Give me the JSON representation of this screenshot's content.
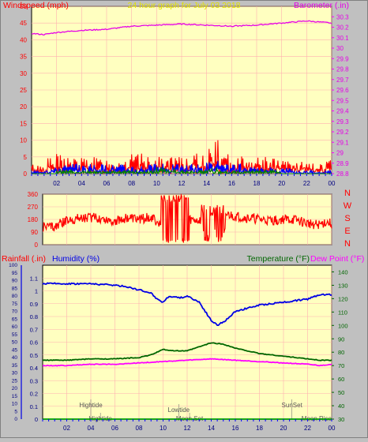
{
  "chart_data": [
    {
      "type": "line",
      "title": "24 hour graph for  July 03 2018",
      "left_label": "Windspeed (mph)",
      "right_label": "Barometer (.in)",
      "ylim_left": [
        0,
        50
      ],
      "ylim_right": [
        28.8,
        30.4
      ],
      "left_ticks": [
        0,
        5,
        10,
        15,
        20,
        25,
        30,
        35,
        40,
        45,
        50
      ],
      "right_ticks": [
        "28.8",
        "28.9",
        "29",
        "29.1",
        "29.2",
        "29.3",
        "29.4",
        "29.5",
        "29.6",
        "29.7",
        "29.8",
        "29.9",
        "30",
        "30.1",
        "30.2",
        "30.3"
      ],
      "x_ticks": [
        "02",
        "04",
        "06",
        "08",
        "10",
        "12",
        "14",
        "16",
        "18",
        "20",
        "22",
        "00"
      ],
      "grid": true,
      "series": [
        {
          "id": "barometer",
          "axis": "right",
          "color": "#e600e6",
          "x": [
            0,
            1,
            2,
            4,
            6,
            8,
            10,
            12,
            14,
            16,
            18,
            20,
            22,
            23,
            24
          ],
          "values": [
            30.14,
            30.13,
            30.15,
            30.17,
            30.18,
            30.21,
            30.22,
            30.23,
            30.22,
            30.21,
            30.22,
            30.24,
            30.26,
            30.25,
            30.24
          ]
        },
        {
          "id": "wind-gust",
          "axis": "left",
          "color": "#ff0000",
          "hourly_max": [
            3,
            5,
            6,
            5,
            5,
            5,
            5,
            5,
            6,
            5,
            5,
            5,
            6,
            6,
            10,
            6,
            6,
            5,
            5,
            5,
            4,
            4,
            3,
            4
          ]
        },
        {
          "id": "wind-avg",
          "axis": "left",
          "color": "#0000ff",
          "hourly_max": [
            1,
            2,
            3,
            3,
            3,
            3,
            3,
            3,
            3,
            3,
            3,
            3,
            3,
            3,
            4,
            3,
            3,
            2,
            2,
            2,
            2,
            1,
            1,
            1
          ]
        },
        {
          "id": "wind-low",
          "axis": "left",
          "color": "#008000",
          "hourly_max": [
            0,
            0,
            1,
            1,
            1,
            1,
            1,
            1,
            1,
            1,
            2,
            2,
            1,
            1,
            2,
            1,
            1,
            1,
            1,
            1,
            0,
            0,
            0,
            0
          ]
        }
      ]
    },
    {
      "type": "line",
      "left_ticks": [
        "360",
        "270",
        "180",
        "90",
        "0"
      ],
      "ylim": [
        0,
        360
      ],
      "compass_labels": [
        "N",
        "W",
        "S",
        "E",
        "N"
      ],
      "series": [
        {
          "id": "wind-direction",
          "color": "#ff0000",
          "x": [
            0,
            1,
            2,
            2.5,
            3,
            4,
            5,
            6,
            7,
            8,
            9,
            9.5,
            10,
            10.5,
            11,
            11.5,
            12,
            13,
            14,
            14.5,
            15,
            16,
            17,
            18,
            19,
            20,
            21,
            22,
            23,
            23.5,
            24
          ],
          "values": [
            130,
            130,
            170,
            180,
            190,
            195,
            185,
            170,
            190,
            180,
            200,
            160,
            120,
            210,
            160,
            170,
            180,
            170,
            200,
            130,
            220,
            200,
            190,
            180,
            170,
            180,
            175,
            150,
            140,
            160,
            150
          ]
        }
      ]
    },
    {
      "type": "line",
      "left_label_1": "Rainfall (.in)",
      "left_label_2": "Humidity (%)",
      "right_label_1": "Temperature (°F)",
      "right_label_2": "Dew Point (°F)",
      "ylim_rain": [
        0,
        1.2
      ],
      "ylim_humidity": [
        0,
        100
      ],
      "ylim_temp": [
        30,
        145
      ],
      "rain_ticks": [
        "0",
        "0.1",
        "0.2",
        "0.3",
        "0.4",
        "0.5",
        "0.6",
        "0.7",
        "0.8",
        "0.9",
        "1",
        "1.1"
      ],
      "humidity_ticks": [
        "0",
        "5",
        "10",
        "15",
        "20",
        "25",
        "30",
        "35",
        "40",
        "45",
        "50",
        "55",
        "60",
        "65",
        "70",
        "75",
        "80",
        "85",
        "90",
        "95",
        "100"
      ],
      "temp_ticks": [
        "30",
        "40",
        "50",
        "60",
        "70",
        "80",
        "90",
        "100",
        "110",
        "120",
        "130",
        "140"
      ],
      "x_ticks": [
        "02",
        "04",
        "06",
        "08",
        "10",
        "12",
        "14",
        "16",
        "18",
        "20",
        "22",
        "00"
      ],
      "annotations": [
        {
          "text": "Hightide",
          "x": 4.0,
          "row": 1
        },
        {
          "text": "Hightide",
          "x": 4.8,
          "row": 3
        },
        {
          "text": "Lowtide",
          "x": 11.3,
          "row": 2
        },
        {
          "text": "Moon Set",
          "x": 12.2,
          "row": 3
        },
        {
          "text": "SunSet",
          "x": 20.7,
          "row": 1
        },
        {
          "text": "Moon Rise",
          "x": 24.0,
          "row": 3
        }
      ],
      "series": [
        {
          "id": "humidity",
          "axis": "humidity",
          "color": "#0000e6",
          "x": [
            0,
            2,
            4,
            6,
            7,
            8,
            9,
            9.5,
            10,
            10.5,
            11,
            11.5,
            12,
            13,
            13.5,
            14,
            14.5,
            15,
            15.5,
            16,
            17,
            18,
            19,
            20,
            21,
            22,
            23,
            24
          ],
          "values": [
            88,
            88,
            88,
            87,
            86,
            84,
            82,
            78,
            76,
            80,
            79,
            79,
            80,
            76,
            70,
            64,
            61,
            63,
            66,
            70,
            72,
            74,
            75,
            76,
            77,
            78,
            81,
            81
          ]
        },
        {
          "id": "temperature",
          "axis": "temp",
          "color": "#006600",
          "x": [
            0,
            2,
            4,
            6,
            8,
            9,
            10,
            11,
            12,
            13,
            14,
            15,
            16,
            17,
            18,
            19,
            20,
            21,
            22,
            23,
            24
          ],
          "values": [
            74,
            74,
            75,
            75,
            76,
            78,
            82,
            81,
            81,
            84,
            87,
            86,
            83,
            81,
            79,
            78,
            77,
            76,
            75,
            74,
            74
          ]
        },
        {
          "id": "dew-point",
          "axis": "temp",
          "color": "#ff00ff",
          "x": [
            0,
            2,
            4,
            6,
            8,
            10,
            12,
            14,
            16,
            18,
            20,
            22,
            23,
            24
          ],
          "values": [
            70,
            70,
            71,
            71,
            72,
            73,
            74,
            75,
            74,
            73,
            72,
            71,
            70,
            71
          ]
        },
        {
          "id": "rainfall",
          "axis": "rain",
          "color": "#00a000",
          "x": [
            0,
            24
          ],
          "values": [
            0,
            0
          ]
        }
      ]
    }
  ]
}
